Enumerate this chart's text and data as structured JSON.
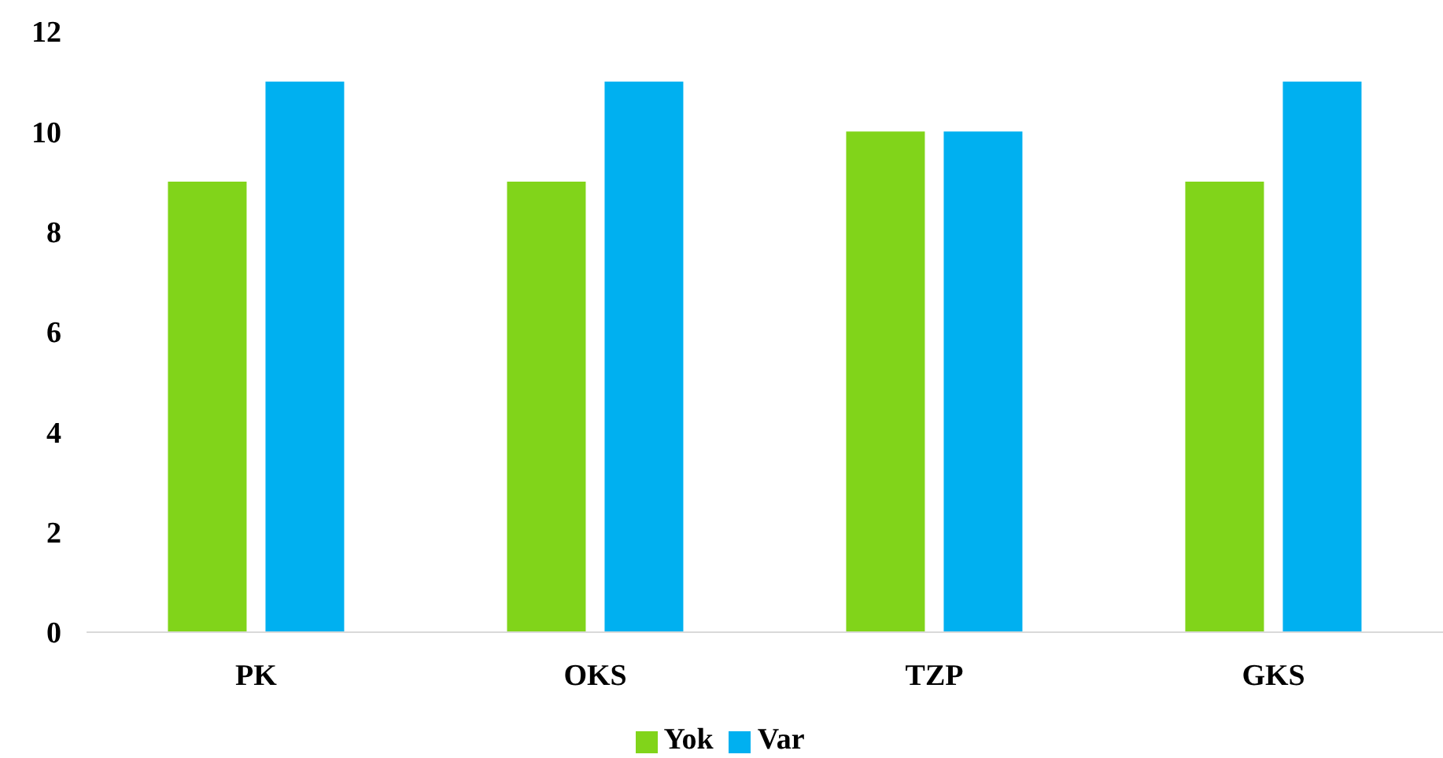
{
  "chart_data": {
    "type": "bar",
    "categories": [
      "PK",
      "OKS",
      "TZP",
      "GKS"
    ],
    "series": [
      {
        "name": "Yok",
        "color": "#81d41a",
        "values": [
          9,
          9,
          10,
          9
        ]
      },
      {
        "name": "Var",
        "color": "#00b0f0",
        "values": [
          11,
          11,
          10,
          11
        ]
      }
    ],
    "ylim": [
      0,
      12
    ],
    "yticks": [
      0,
      2,
      4,
      6,
      8,
      10,
      12
    ],
    "legend": "bottom"
  }
}
